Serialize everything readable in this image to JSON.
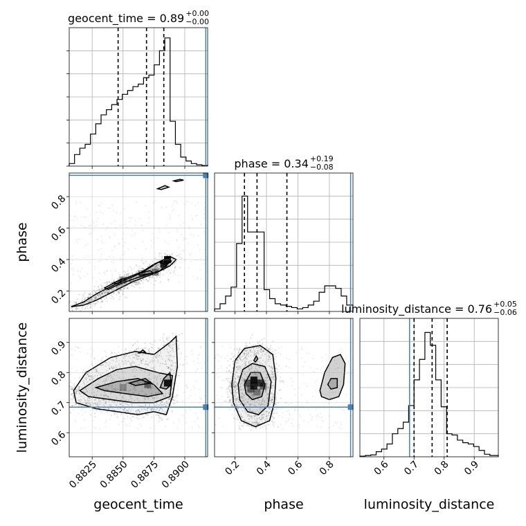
{
  "chart_data": {
    "type": "corner",
    "parameters": [
      "geocent_time",
      "phase",
      "luminosity_distance"
    ],
    "axis_labels": [
      "geocent_time",
      "phase",
      "luminosity_distance"
    ],
    "titles": [
      {
        "param": "geocent_time",
        "text": "geocent_time = 0.89",
        "plus": "+0.00",
        "minus": "−0.00"
      },
      {
        "param": "phase",
        "text": "phase = 0.34",
        "plus": "+0.19",
        "minus": "−0.08"
      },
      {
        "param": "luminosity_distance",
        "text": "luminosity_distance = 0.76",
        "plus": "+0.05",
        "minus": "−0.06"
      }
    ],
    "ranges": {
      "geocent_time": [
        0.88064,
        0.89185
      ],
      "phase": [
        0.07,
        0.95
      ],
      "luminosity_distance": [
        0.52,
        0.98
      ]
    },
    "ticks": {
      "geocent_time": {
        "values": [
          0.8825,
          0.885,
          0.8875,
          0.89
        ],
        "labels": [
          "0.8825",
          "0.8850",
          "0.8875",
          "0.8900"
        ]
      },
      "phase": {
        "values": [
          0.2,
          0.4,
          0.6,
          0.8
        ],
        "labels": [
          "0.2",
          "0.4",
          "0.6",
          "0.8"
        ]
      },
      "luminosity_distance": {
        "values": [
          0.6,
          0.7,
          0.8,
          0.9
        ],
        "labels": [
          "0.6",
          "0.7",
          "0.8",
          "0.9"
        ]
      }
    },
    "truths": {
      "geocent_time": 0.8917,
      "phase": 0.935,
      "luminosity_distance": 0.685
    },
    "quantiles": {
      "geocent_time": [
        0.8846,
        0.8869,
        0.8883
      ],
      "phase": [
        0.26,
        0.34,
        0.53
      ],
      "luminosity_distance": [
        0.7,
        0.76,
        0.81
      ]
    },
    "hist_max": {
      "geocent_time": 1.0,
      "phase": 1.0,
      "luminosity_distance": 1.0
    },
    "histograms": {
      "geocent_time": {
        "edges": [
          0.88064,
          0.88107,
          0.8815,
          0.88193,
          0.88236,
          0.88279,
          0.88322,
          0.88365,
          0.88408,
          0.88451,
          0.88494,
          0.88537,
          0.8858,
          0.88623,
          0.88666,
          0.88709,
          0.88752,
          0.88795,
          0.88838,
          0.88881,
          0.88924,
          0.88967,
          0.8901,
          0.89053,
          0.89096,
          0.89139,
          0.89185
        ],
        "values": [
          0.02,
          0.09,
          0.14,
          0.17,
          0.25,
          0.33,
          0.4,
          0.44,
          0.48,
          0.52,
          0.56,
          0.59,
          0.62,
          0.64,
          0.69,
          0.71,
          0.79,
          0.9,
          1.0,
          0.35,
          0.17,
          0.07,
          0.04,
          0.02,
          0.01,
          0.005
        ]
      },
      "phase": {
        "edges": [
          0.07,
          0.105,
          0.14,
          0.175,
          0.21,
          0.245,
          0.28,
          0.315,
          0.35,
          0.385,
          0.42,
          0.455,
          0.49,
          0.525,
          0.56,
          0.595,
          0.63,
          0.665,
          0.7,
          0.735,
          0.77,
          0.805,
          0.84,
          0.875,
          0.91,
          0.95
        ],
        "values": [
          0.02,
          0.06,
          0.12,
          0.19,
          0.53,
          0.9,
          0.62,
          0.62,
          0.62,
          0.17,
          0.1,
          0.06,
          0.05,
          0.04,
          0.03,
          0.02,
          0.03,
          0.05,
          0.08,
          0.15,
          0.2,
          0.2,
          0.18,
          0.12,
          0.05
        ]
      },
      "luminosity_distance": {
        "edges": [
          0.52,
          0.538,
          0.556,
          0.574,
          0.592,
          0.61,
          0.628,
          0.646,
          0.664,
          0.682,
          0.7,
          0.718,
          0.736,
          0.754,
          0.772,
          0.79,
          0.808,
          0.826,
          0.844,
          0.862,
          0.88,
          0.898,
          0.916,
          0.934,
          0.952,
          0.98
        ],
        "values": [
          0.005,
          0.01,
          0.015,
          0.04,
          0.06,
          0.1,
          0.18,
          0.22,
          0.27,
          0.4,
          0.6,
          0.76,
          0.97,
          0.87,
          0.6,
          0.39,
          0.18,
          0.17,
          0.13,
          0.11,
          0.1,
          0.08,
          0.05,
          0.02,
          0.01
        ]
      }
    },
    "contours_2d": [
      {
        "x": "geocent_time",
        "y": "phase",
        "levels": [
          [
            [
              0.8808,
              0.1
            ],
            [
              0.8818,
              0.13
            ],
            [
              0.8828,
              0.18
            ],
            [
              0.8838,
              0.22
            ],
            [
              0.8848,
              0.26
            ],
            [
              0.8858,
              0.29
            ],
            [
              0.8868,
              0.33
            ],
            [
              0.8878,
              0.38
            ],
            [
              0.8888,
              0.42
            ],
            [
              0.8893,
              0.4
            ],
            [
              0.8888,
              0.36
            ],
            [
              0.8878,
              0.32
            ],
            [
              0.8868,
              0.29
            ],
            [
              0.8858,
              0.26
            ],
            [
              0.8848,
              0.22
            ],
            [
              0.8838,
              0.18
            ],
            [
              0.8828,
              0.14
            ],
            [
              0.8818,
              0.11
            ],
            [
              0.8808,
              0.1
            ]
          ],
          [
            [
              0.8835,
              0.22
            ],
            [
              0.8845,
              0.26
            ],
            [
              0.8855,
              0.29
            ],
            [
              0.8865,
              0.32
            ],
            [
              0.8875,
              0.37
            ],
            [
              0.8886,
              0.41
            ],
            [
              0.8889,
              0.39
            ],
            [
              0.888,
              0.33
            ],
            [
              0.8868,
              0.3
            ],
            [
              0.8856,
              0.27
            ],
            [
              0.8846,
              0.24
            ],
            [
              0.8838,
              0.21
            ],
            [
              0.8835,
              0.22
            ]
          ],
          [
            [
              0.8842,
              0.25
            ],
            [
              0.885,
              0.28
            ],
            [
              0.8852,
              0.27
            ],
            [
              0.8845,
              0.245
            ],
            [
              0.8842,
              0.25
            ]
          ],
          [
            [
              0.8862,
              0.31
            ],
            [
              0.8872,
              0.33
            ],
            [
              0.8874,
              0.315
            ],
            [
              0.8864,
              0.3
            ],
            [
              0.8862,
              0.31
            ]
          ],
          [
            [
              0.888,
              0.38
            ],
            [
              0.8886,
              0.42
            ],
            [
              0.8889,
              0.39
            ],
            [
              0.8884,
              0.37
            ],
            [
              0.888,
              0.38
            ]
          ],
          [
            [
              0.8878,
              0.85
            ],
            [
              0.8884,
              0.87
            ],
            [
              0.8887,
              0.86
            ],
            [
              0.8881,
              0.845
            ],
            [
              0.8878,
              0.85
            ]
          ],
          [
            [
              0.8891,
              0.9
            ],
            [
              0.8896,
              0.91
            ],
            [
              0.8899,
              0.905
            ],
            [
              0.8893,
              0.895
            ],
            [
              0.8891,
              0.9
            ]
          ]
        ]
      },
      {
        "x": "geocent_time",
        "y": "luminosity_distance",
        "levels": [
          [
            [
              0.881,
              0.74
            ],
            [
              0.882,
              0.8
            ],
            [
              0.884,
              0.85
            ],
            [
              0.886,
              0.87
            ],
            [
              0.8875,
              0.86
            ],
            [
              0.8888,
              0.9
            ],
            [
              0.8893,
              0.92
            ],
            [
              0.8894,
              0.82
            ],
            [
              0.889,
              0.72
            ],
            [
              0.8885,
              0.66
            ],
            [
              0.8875,
              0.67
            ],
            [
              0.8862,
              0.66
            ],
            [
              0.8845,
              0.67
            ],
            [
              0.8828,
              0.68
            ],
            [
              0.8812,
              0.7
            ],
            [
              0.881,
              0.74
            ]
          ],
          [
            [
              0.8815,
              0.74
            ],
            [
              0.883,
              0.78
            ],
            [
              0.8845,
              0.81
            ],
            [
              0.886,
              0.82
            ],
            [
              0.8878,
              0.8
            ],
            [
              0.889,
              0.79
            ],
            [
              0.8888,
              0.72
            ],
            [
              0.8875,
              0.7
            ],
            [
              0.8858,
              0.7
            ],
            [
              0.884,
              0.71
            ],
            [
              0.8822,
              0.72
            ],
            [
              0.8815,
              0.74
            ]
          ],
          [
            [
              0.8828,
              0.75
            ],
            [
              0.8845,
              0.77
            ],
            [
              0.8862,
              0.78
            ],
            [
              0.8875,
              0.76
            ],
            [
              0.8882,
              0.73
            ],
            [
              0.887,
              0.72
            ],
            [
              0.8852,
              0.73
            ],
            [
              0.8835,
              0.74
            ],
            [
              0.8828,
              0.75
            ]
          ],
          [
            [
              0.8855,
              0.765
            ],
            [
              0.8868,
              0.78
            ],
            [
              0.8873,
              0.765
            ],
            [
              0.886,
              0.757
            ],
            [
              0.8855,
              0.765
            ]
          ],
          [
            [
              0.888,
              0.75
            ],
            [
              0.8883,
              0.78
            ],
            [
              0.8888,
              0.8
            ],
            [
              0.8889,
              0.76
            ],
            [
              0.8885,
              0.745
            ],
            [
              0.888,
              0.75
            ]
          ],
          [
            [
              0.8863,
              0.865
            ],
            [
              0.8866,
              0.875
            ],
            [
              0.8868,
              0.868
            ],
            [
              0.8863,
              0.865
            ]
          ]
        ]
      },
      {
        "x": "phase",
        "y": "luminosity_distance",
        "levels": [
          [
            [
              0.18,
              0.76
            ],
            [
              0.2,
              0.84
            ],
            [
              0.26,
              0.88
            ],
            [
              0.36,
              0.89
            ],
            [
              0.44,
              0.86
            ],
            [
              0.46,
              0.78
            ],
            [
              0.45,
              0.7
            ],
            [
              0.42,
              0.64
            ],
            [
              0.33,
              0.62
            ],
            [
              0.24,
              0.64
            ],
            [
              0.19,
              0.7
            ],
            [
              0.18,
              0.76
            ]
          ],
          [
            [
              0.22,
              0.76
            ],
            [
              0.25,
              0.81
            ],
            [
              0.31,
              0.83
            ],
            [
              0.39,
              0.82
            ],
            [
              0.43,
              0.77
            ],
            [
              0.41,
              0.69
            ],
            [
              0.35,
              0.66
            ],
            [
              0.28,
              0.67
            ],
            [
              0.23,
              0.71
            ],
            [
              0.22,
              0.76
            ]
          ],
          [
            [
              0.26,
              0.76
            ],
            [
              0.3,
              0.8
            ],
            [
              0.36,
              0.8
            ],
            [
              0.39,
              0.76
            ],
            [
              0.37,
              0.72
            ],
            [
              0.31,
              0.71
            ],
            [
              0.27,
              0.73
            ],
            [
              0.26,
              0.76
            ]
          ],
          [
            [
              0.32,
              0.84
            ],
            [
              0.335,
              0.855
            ],
            [
              0.345,
              0.845
            ],
            [
              0.33,
              0.835
            ],
            [
              0.32,
              0.84
            ]
          ],
          [
            [
              0.74,
              0.74
            ],
            [
              0.77,
              0.8
            ],
            [
              0.82,
              0.85
            ],
            [
              0.87,
              0.86
            ],
            [
              0.9,
              0.83
            ],
            [
              0.89,
              0.76
            ],
            [
              0.86,
              0.72
            ],
            [
              0.8,
              0.71
            ],
            [
              0.75,
              0.72
            ],
            [
              0.74,
              0.74
            ]
          ],
          [
            [
              0.79,
              0.76
            ],
            [
              0.81,
              0.78
            ],
            [
              0.85,
              0.78
            ],
            [
              0.85,
              0.75
            ],
            [
              0.81,
              0.745
            ],
            [
              0.79,
              0.76
            ]
          ]
        ]
      }
    ],
    "density_cores": [
      {
        "x": "geocent_time",
        "y": "phase",
        "cells": [
          [
            0.8883,
            0.37,
            0.9
          ],
          [
            0.8886,
            0.4,
            1.0
          ],
          [
            0.8876,
            0.32,
            0.5
          ],
          [
            0.8865,
            0.31,
            0.4
          ],
          [
            0.885,
            0.27,
            0.4
          ]
        ]
      },
      {
        "x": "geocent_time",
        "y": "luminosity_distance",
        "cells": [
          [
            0.8886,
            0.765,
            1.0
          ],
          [
            0.887,
            0.76,
            0.5
          ],
          [
            0.885,
            0.75,
            0.3
          ]
        ]
      },
      {
        "x": "phase",
        "y": "luminosity_distance",
        "cells": [
          [
            0.32,
            0.775,
            1.0
          ],
          [
            0.32,
            0.755,
            0.9
          ],
          [
            0.36,
            0.765,
            0.8
          ],
          [
            0.28,
            0.765,
            0.6
          ],
          [
            0.38,
            0.755,
            0.5
          ],
          [
            0.3,
            0.745,
            0.5
          ],
          [
            0.34,
            0.735,
            0.4
          ]
        ]
      }
    ],
    "colors": {
      "truth": "#4682b4",
      "hist": "#000000",
      "grid": "#b0b0b0",
      "scatter": "#000000"
    }
  }
}
